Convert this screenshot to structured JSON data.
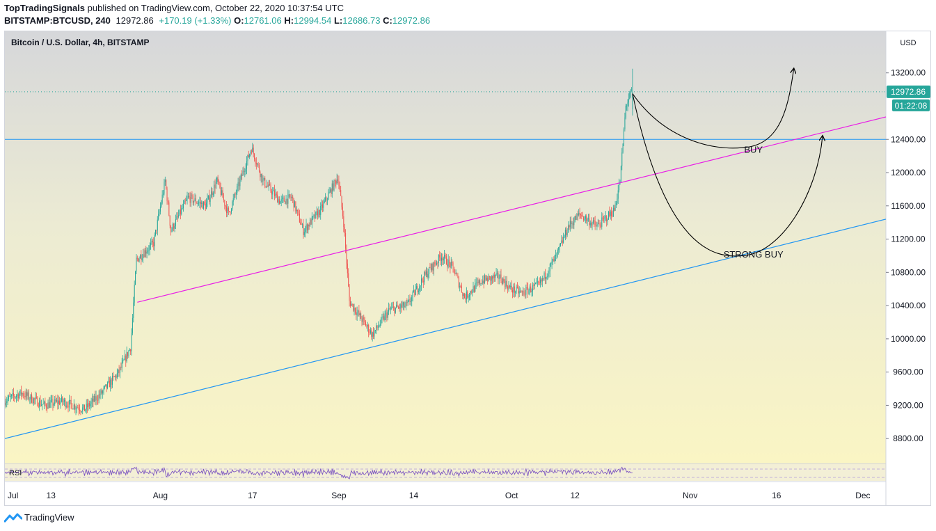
{
  "header": {
    "author": "TopTradingSignals",
    "published_text": "published on TradingView.com, October 22, 2020 10:37:54 UTC",
    "symbol": "BITSTAMP:BTCUSD, 240",
    "last": "12972.86",
    "change": "+170.19 (+1.33%)",
    "o_label": "O:",
    "o": "12761.06",
    "h_label": "H:",
    "h": "12994.54",
    "l_label": "L:",
    "l": "12686.73",
    "c_label": "C:",
    "c": "12972.86"
  },
  "instrument_title": "Bitcoin / U.S. Dollar, 4h, BITSTAMP",
  "footer": {
    "brand": "TradingView"
  },
  "colors": {
    "up": "#26a69a",
    "down": "#ef5350",
    "magenta": "#e91ee6",
    "blue_line": "#2196f3",
    "rsi": "#7e57c2",
    "price_tag": "#26a69a"
  },
  "chart_data": {
    "type": "candlestick",
    "currency": "USD",
    "y_ticks": [
      13200,
      12800,
      12400,
      12000,
      11600,
      11200,
      10800,
      10400,
      10000,
      9600,
      9200,
      8800
    ],
    "y_tick_labels": [
      "13200.00",
      "12400.00",
      "12000.00",
      "11600.00",
      "11200.00",
      "10800.00",
      "10400.00",
      "10000.00",
      "9600.00",
      "9200.00",
      "8800.00"
    ],
    "ylim": [
      8500,
      13700
    ],
    "x_ticks": [
      "Jul",
      "13",
      "Aug",
      "17",
      "Sep",
      "14",
      "Oct",
      "12",
      "Nov",
      "16",
      "Dec"
    ],
    "xlim": [
      "2020-07-05",
      "2020-12-05"
    ],
    "last_price": {
      "label": "12972.86",
      "value": 12972.86,
      "countdown": "01:22:08"
    },
    "horizontal_line": 12400,
    "keypoints": [
      [
        "2020-07-05",
        9250
      ],
      [
        "2020-07-08",
        9350
      ],
      [
        "2020-07-12",
        9200
      ],
      [
        "2020-07-15",
        9250
      ],
      [
        "2020-07-19",
        9150
      ],
      [
        "2020-07-22",
        9350
      ],
      [
        "2020-07-25",
        9600
      ],
      [
        "2020-07-27",
        9900
      ],
      [
        "2020-07-28",
        10950
      ],
      [
        "2020-07-31",
        11150
      ],
      [
        "2020-08-02",
        11900
      ],
      [
        "2020-08-03",
        11300
      ],
      [
        "2020-08-06",
        11700
      ],
      [
        "2020-08-09",
        11600
      ],
      [
        "2020-08-11",
        11900
      ],
      [
        "2020-08-13",
        11500
      ],
      [
        "2020-08-15",
        11900
      ],
      [
        "2020-08-17",
        12300
      ],
      [
        "2020-08-19",
        11900
      ],
      [
        "2020-08-22",
        11650
      ],
      [
        "2020-08-24",
        11700
      ],
      [
        "2020-08-26",
        11300
      ],
      [
        "2020-08-29",
        11550
      ],
      [
        "2020-09-01",
        11950
      ],
      [
        "2020-09-02",
        11400
      ],
      [
        "2020-09-03",
        10450
      ],
      [
        "2020-09-05",
        10250
      ],
      [
        "2020-09-07",
        10050
      ],
      [
        "2020-09-10",
        10350
      ],
      [
        "2020-09-13",
        10400
      ],
      [
        "2020-09-16",
        10750
      ],
      [
        "2020-09-19",
        11000
      ],
      [
        "2020-09-21",
        10850
      ],
      [
        "2020-09-23",
        10500
      ],
      [
        "2020-09-26",
        10700
      ],
      [
        "2020-09-29",
        10750
      ],
      [
        "2020-10-01",
        10600
      ],
      [
        "2020-10-03",
        10550
      ],
      [
        "2020-10-06",
        10650
      ],
      [
        "2020-10-09",
        11000
      ],
      [
        "2020-10-11",
        11350
      ],
      [
        "2020-10-13",
        11500
      ],
      [
        "2020-10-16",
        11350
      ],
      [
        "2020-10-19",
        11550
      ],
      [
        "2020-10-20",
        11900
      ],
      [
        "2020-10-21",
        12800
      ],
      [
        "2020-10-22",
        12972.86
      ]
    ],
    "trendlines": [
      {
        "name": "magenta_channel",
        "color": "#e91ee6",
        "from": [
          "2020-07-28",
          10440
        ],
        "to": [
          "2020-12-05",
          12670
        ]
      },
      {
        "name": "blue_channel",
        "color": "#2196f3",
        "from": [
          "2020-07-05",
          8800
        ],
        "to": [
          "2020-12-05",
          11440
        ]
      }
    ],
    "annotations": [
      {
        "text": "BUY",
        "x": "2020-11-12",
        "y": 12240
      },
      {
        "text": "STRONG BUY",
        "x": "2020-11-12",
        "y": 10980
      }
    ],
    "projections": [
      {
        "name": "short_path",
        "points": [
          [
            "2020-10-22",
            12950
          ],
          [
            "2020-11-10",
            12300
          ],
          [
            "2020-11-19",
            13250
          ]
        ]
      },
      {
        "name": "deep_path",
        "points": [
          [
            "2020-10-22",
            12950
          ],
          [
            "2020-11-10",
            11000
          ],
          [
            "2020-11-24",
            12440
          ]
        ]
      }
    ],
    "rsi_label": "RSI"
  }
}
